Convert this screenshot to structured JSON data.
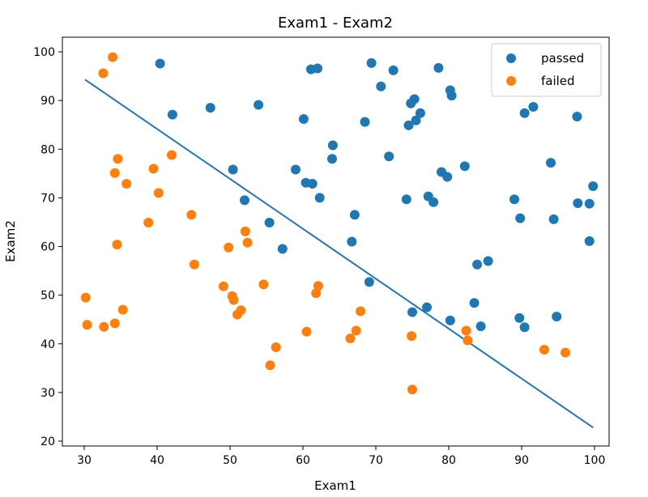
{
  "chart_data": {
    "type": "scatter",
    "title": "Exam1 - Exam2",
    "xlabel": "Exam1",
    "ylabel": "Exam2",
    "xlim": [
      27,
      102
    ],
    "ylim": [
      19,
      103
    ],
    "xticks": [
      30,
      40,
      50,
      60,
      70,
      80,
      90,
      100
    ],
    "yticks": [
      20,
      30,
      40,
      50,
      60,
      70,
      80,
      90,
      100
    ],
    "legend_position": "top-right",
    "grid": false,
    "series": [
      {
        "name": "passed",
        "color": "#1f77b4",
        "points": [
          [
            40.4,
            97.6
          ],
          [
            42.1,
            87.1
          ],
          [
            47.3,
            88.5
          ],
          [
            50.4,
            75.8
          ],
          [
            52.0,
            69.5
          ],
          [
            53.9,
            89.1
          ],
          [
            55.4,
            64.9
          ],
          [
            57.2,
            59.5
          ],
          [
            59.0,
            75.8
          ],
          [
            60.1,
            86.2
          ],
          [
            60.4,
            73.1
          ],
          [
            61.1,
            96.4
          ],
          [
            61.3,
            72.9
          ],
          [
            62.0,
            96.6
          ],
          [
            62.3,
            70.0
          ],
          [
            64.0,
            78.0
          ],
          [
            64.1,
            80.8
          ],
          [
            66.7,
            61.0
          ],
          [
            67.1,
            66.5
          ],
          [
            68.5,
            85.6
          ],
          [
            69.1,
            52.7
          ],
          [
            69.4,
            97.7
          ],
          [
            70.7,
            92.9
          ],
          [
            71.8,
            78.5
          ],
          [
            72.4,
            96.2
          ],
          [
            74.2,
            69.7
          ],
          [
            74.5,
            84.9
          ],
          [
            74.8,
            89.4
          ],
          [
            75.0,
            46.5
          ],
          [
            75.3,
            90.3
          ],
          [
            75.5,
            85.9
          ],
          [
            76.1,
            87.4
          ],
          [
            77.0,
            47.5
          ],
          [
            77.2,
            70.3
          ],
          [
            77.9,
            69.1
          ],
          [
            78.6,
            96.7
          ],
          [
            79.0,
            75.3
          ],
          [
            79.8,
            74.3
          ],
          [
            80.2,
            92.1
          ],
          [
            80.2,
            44.8
          ],
          [
            80.4,
            91.0
          ],
          [
            82.2,
            76.5
          ],
          [
            83.5,
            48.4
          ],
          [
            83.9,
            56.3
          ],
          [
            84.4,
            43.6
          ],
          [
            85.4,
            57.0
          ],
          [
            89.0,
            69.7
          ],
          [
            89.7,
            45.3
          ],
          [
            89.8,
            65.8
          ],
          [
            90.4,
            43.4
          ],
          [
            90.4,
            87.4
          ],
          [
            91.6,
            88.7
          ],
          [
            94.0,
            77.2
          ],
          [
            94.4,
            65.6
          ],
          [
            94.8,
            45.6
          ],
          [
            97.6,
            86.7
          ],
          [
            97.7,
            68.9
          ],
          [
            99.3,
            68.8
          ],
          [
            99.3,
            61.1
          ],
          [
            99.8,
            72.4
          ]
        ]
      },
      {
        "name": "failed",
        "color": "#ff7f0e",
        "points": [
          [
            30.2,
            49.5
          ],
          [
            30.4,
            43.9
          ],
          [
            32.6,
            95.6
          ],
          [
            32.7,
            43.5
          ],
          [
            33.9,
            98.9
          ],
          [
            34.2,
            44.2
          ],
          [
            34.2,
            75.1
          ],
          [
            34.5,
            60.4
          ],
          [
            34.6,
            78.0
          ],
          [
            35.3,
            47.0
          ],
          [
            35.8,
            72.9
          ],
          [
            38.8,
            64.9
          ],
          [
            39.5,
            76.0
          ],
          [
            40.2,
            71.0
          ],
          [
            42.0,
            78.8
          ],
          [
            44.7,
            66.5
          ],
          [
            45.1,
            56.3
          ],
          [
            49.1,
            51.8
          ],
          [
            49.8,
            59.8
          ],
          [
            50.3,
            49.8
          ],
          [
            50.5,
            49.0
          ],
          [
            51.0,
            46.0
          ],
          [
            51.5,
            46.9
          ],
          [
            52.1,
            63.1
          ],
          [
            52.4,
            60.8
          ],
          [
            54.6,
            52.2
          ],
          [
            55.5,
            35.6
          ],
          [
            56.3,
            39.3
          ],
          [
            60.5,
            42.5
          ],
          [
            61.8,
            50.4
          ],
          [
            62.1,
            51.9
          ],
          [
            66.5,
            41.1
          ],
          [
            67.3,
            42.7
          ],
          [
            67.9,
            46.7
          ],
          [
            74.9,
            41.6
          ],
          [
            75.0,
            30.6
          ],
          [
            82.4,
            42.7
          ],
          [
            82.6,
            40.7
          ],
          [
            93.1,
            38.8
          ],
          [
            96.0,
            38.2
          ]
        ]
      }
    ],
    "line": {
      "color": "#1f77b4",
      "points": [
        [
          30.1,
          94.3
        ],
        [
          99.8,
          22.8
        ]
      ]
    }
  }
}
